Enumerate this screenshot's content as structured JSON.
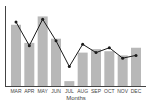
{
  "chart_data": {
    "type": "bar",
    "xlabel": "Months",
    "categories": [
      "MAR",
      "APR",
      "MAY",
      "JUN",
      "JUL",
      "AUG",
      "SEP",
      "OCT",
      "NOV",
      "DEC"
    ],
    "series": [
      {
        "type": "bar",
        "color": "#b8b8b8",
        "values": [
          88,
          62,
          100,
          68,
          7,
          48,
          53,
          50,
          44,
          55
        ]
      },
      {
        "type": "line",
        "color": "#1a1a1a",
        "marker": "circle",
        "values": [
          92,
          58,
          96,
          65,
          28,
          60,
          48,
          55,
          40,
          44
        ]
      }
    ],
    "ylim": [
      0,
      115
    ],
    "grid": false,
    "tick_labels": "x"
  }
}
